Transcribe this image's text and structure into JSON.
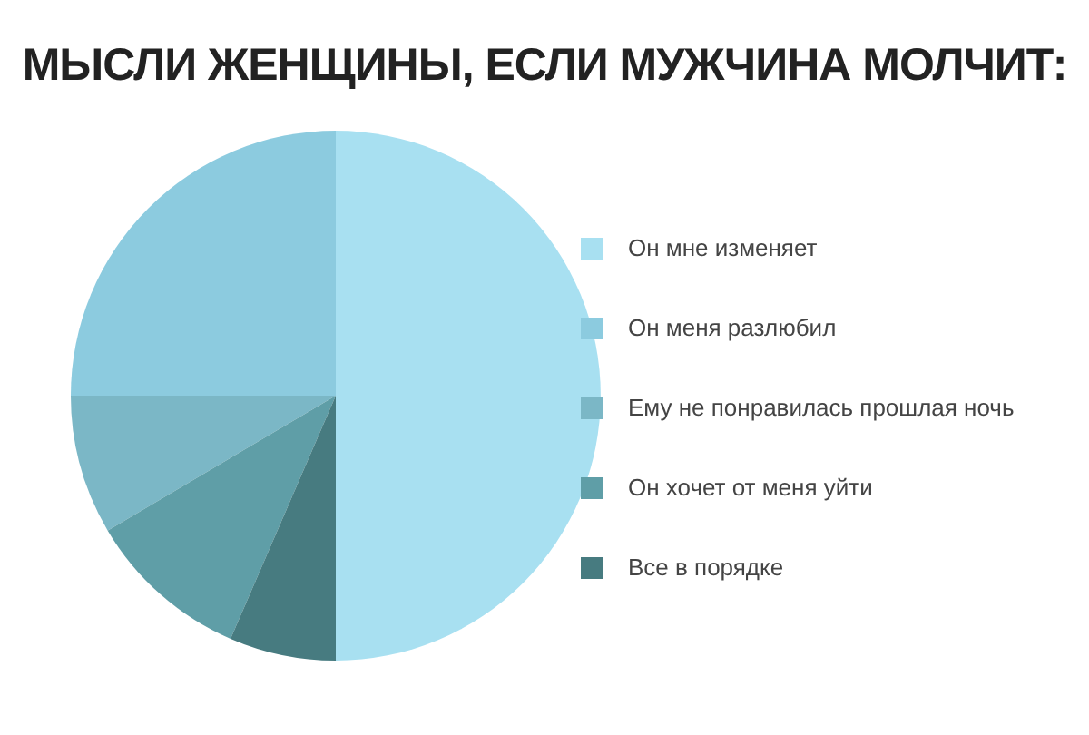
{
  "chart_data": {
    "type": "pie",
    "title": "МЫСЛИ ЖЕНЩИНЫ, ЕСЛИ МУЖЧИНА МОЛЧИТ:",
    "categories": [
      "Он мне изменяет",
      "Он меня разлюбил",
      "Ему не понравилась прошлая ночь",
      "Он хочет от меня уйти",
      "Все в порядке"
    ],
    "values": [
      50,
      25,
      8.5,
      10,
      6.5
    ],
    "colors": [
      "#a8e0f1",
      "#8ccbdf",
      "#7bb7c6",
      "#5f9ea7",
      "#477b80"
    ],
    "legend": "right"
  }
}
